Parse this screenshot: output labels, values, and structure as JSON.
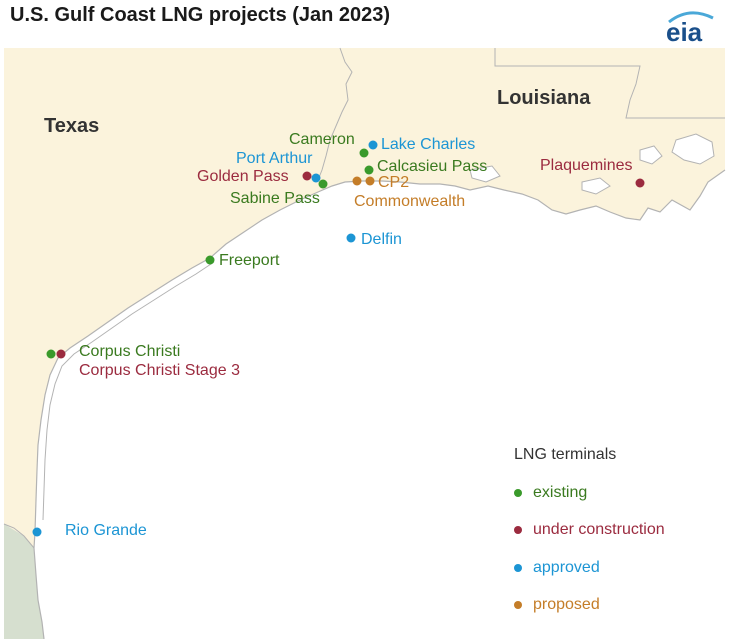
{
  "title": "U.S. Gulf Coast LNG projects (Jan 2023)",
  "logo_text": "eia",
  "colors": {
    "land": "#fbf3dc",
    "mexico": "#d6dfcf",
    "border": "#b3b3b3",
    "existing": "#3a9a2b",
    "under_construction": "#9b2b3f",
    "approved": "#1c95d4",
    "proposed": "#c47d28"
  },
  "states": [
    "Texas",
    "Louisiana"
  ],
  "terminals": [
    {
      "name": "Cameron",
      "status": "existing"
    },
    {
      "name": "Lake Charles",
      "status": "approved"
    },
    {
      "name": "Port Arthur",
      "status": "approved"
    },
    {
      "name": "Calcasieu Pass",
      "status": "existing"
    },
    {
      "name": "Golden Pass",
      "status": "under_construction"
    },
    {
      "name": "CP2",
      "status": "proposed"
    },
    {
      "name": "Sabine Pass",
      "status": "existing"
    },
    {
      "name": "Commonwealth",
      "status": "proposed"
    },
    {
      "name": "Plaquemines",
      "status": "under_construction"
    },
    {
      "name": "Delfin",
      "status": "approved"
    },
    {
      "name": "Freeport",
      "status": "existing"
    },
    {
      "name": "Corpus Christi",
      "status": "existing"
    },
    {
      "name": "Corpus Christi Stage 3",
      "status": "under_construction"
    },
    {
      "name": "Rio Grande",
      "status": "approved"
    }
  ],
  "legend": {
    "title": "LNG terminals",
    "items": [
      {
        "label": "existing",
        "status": "existing"
      },
      {
        "label": "under construction",
        "status": "under_construction"
      },
      {
        "label": "approved",
        "status": "approved"
      },
      {
        "label": "proposed",
        "status": "proposed"
      }
    ]
  }
}
